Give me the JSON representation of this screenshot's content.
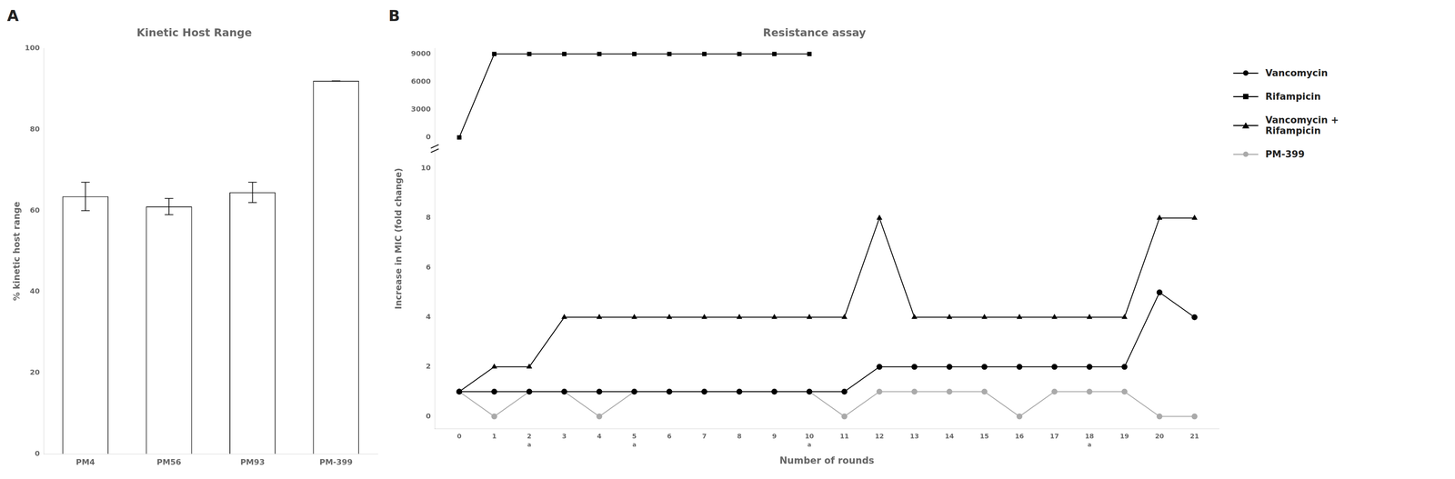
{
  "chart_data": [
    {
      "type": "bar",
      "title": "Kinetic Host Range",
      "categories": [
        "PM4",
        "PM56",
        "PM93",
        "PM-399"
      ],
      "values": [
        63.5,
        61.0,
        64.5,
        92.0
      ],
      "errors": [
        3.5,
        2.0,
        2.5,
        0.0
      ],
      "color": "#ffffff",
      "ylabel": "% kinetic host range",
      "ylim": [
        0,
        100
      ],
      "yticks": [
        0,
        20,
        40,
        60,
        80,
        100
      ],
      "grid": false,
      "annotations": [
        {
          "text": "A"
        }
      ]
    },
    {
      "type": "line",
      "title": "Resistance assay",
      "xlabel": "Number of rounds",
      "ylabel": "Increase in MIC (fold change)",
      "x": [
        0,
        1,
        2,
        3,
        4,
        5,
        6,
        7,
        8,
        9,
        10,
        11,
        12,
        13,
        14,
        15,
        16,
        17,
        18,
        19,
        20,
        21
      ],
      "xlim": [
        -0.7,
        21.7
      ],
      "xticks": [
        0,
        1,
        2,
        3,
        4,
        5,
        6,
        7,
        8,
        9,
        10,
        11,
        12,
        13,
        14,
        15,
        16,
        17,
        18,
        19,
        20,
        21
      ],
      "ylim": [
        -0.5,
        10.8
      ],
      "yticks": [
        0,
        2,
        4,
        6,
        8,
        10
      ],
      "y2lim": [
        -1200,
        9600
      ],
      "y2ticks": [
        0,
        3000,
        6000,
        9000
      ],
      "grid": false,
      "legend": "right",
      "series": [
        {
          "name": "Vancomycin",
          "color": "#000000",
          "marker": "circle",
          "values": [
            1,
            1,
            1,
            1,
            1,
            1,
            1,
            1,
            1,
            1,
            1,
            1,
            2,
            2,
            2,
            2,
            2,
            2,
            2,
            2,
            5,
            4
          ]
        },
        {
          "name": "Rifampicin",
          "color": "#000000",
          "marker": "square",
          "axis": "y2",
          "values": [
            1,
            9000,
            9000,
            9000,
            9000,
            9000,
            9000,
            9000,
            9000,
            9000,
            9000,
            null,
            null,
            null,
            null,
            null,
            null,
            null,
            null,
            null,
            null,
            null
          ]
        },
        {
          "name": "Vancomycin +\nRifampicin",
          "color": "#000000",
          "marker": "triangle",
          "values": [
            1,
            2,
            2,
            4,
            4,
            4,
            4,
            4,
            4,
            4,
            4,
            4,
            8,
            4,
            4,
            4,
            4,
            4,
            4,
            4,
            8,
            8
          ]
        },
        {
          "name": "PM-399",
          "color": "#aaaaaa",
          "marker": "circle",
          "values": [
            1,
            0,
            1,
            1,
            0,
            1,
            1,
            1,
            1,
            1,
            1,
            0,
            1,
            1,
            1,
            1,
            0,
            1,
            1,
            1,
            0,
            0
          ]
        }
      ],
      "annotations": [
        {
          "text": "B"
        },
        {
          "x": 2,
          "text": "a"
        },
        {
          "x": 5,
          "text": "a"
        },
        {
          "x": 10,
          "text": "a"
        },
        {
          "x": 18,
          "text": "a"
        }
      ]
    }
  ]
}
